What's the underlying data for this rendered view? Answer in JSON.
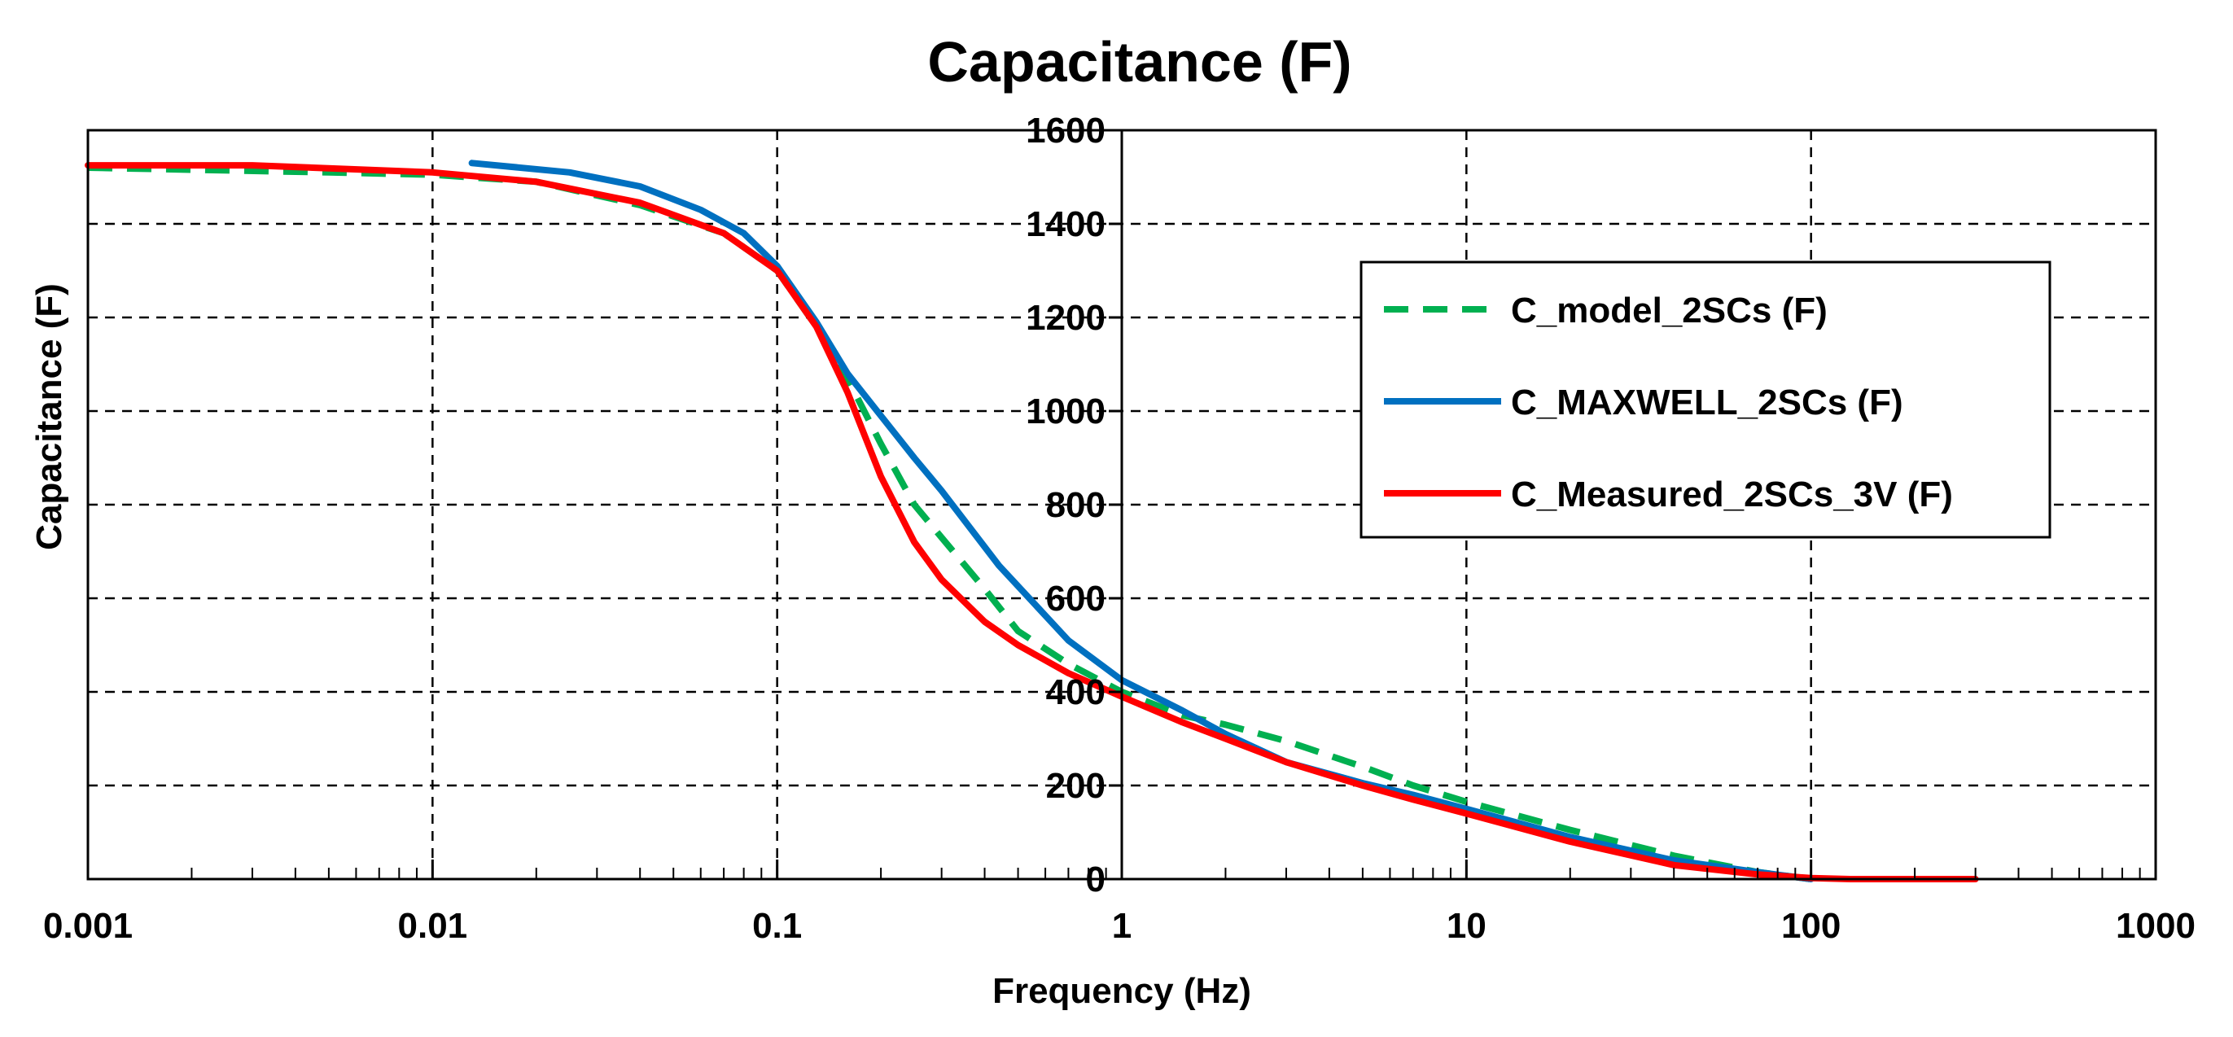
{
  "chart_data": {
    "type": "line",
    "title": "Capacitance (F)",
    "xlabel": "Frequency (Hz)",
    "ylabel": "Capacitance (F)",
    "xscale": "log",
    "xlim": [
      0.001,
      1000
    ],
    "ylim": [
      0,
      1600
    ],
    "x_ticks": [
      0.001,
      0.01,
      0.1,
      1,
      10,
      100,
      1000
    ],
    "x_tick_labels": [
      "0.001",
      "0.01",
      "0.1",
      "1",
      "10",
      "100",
      "1000"
    ],
    "y_ticks": [
      0,
      200,
      400,
      600,
      800,
      1000,
      1200,
      1400,
      1600
    ],
    "y_tick_labels": [
      "0",
      "200",
      "400",
      "600",
      "800",
      "1000",
      "1200",
      "1400",
      "1600"
    ],
    "grid": true,
    "legend_position": "right",
    "series": [
      {
        "name": "C_model_2SCs (F)",
        "color": "#00b050",
        "style": "dashed",
        "x": [
          0.001,
          0.005,
          0.01,
          0.02,
          0.04,
          0.07,
          0.1,
          0.13,
          0.16,
          0.2,
          0.25,
          0.3,
          0.4,
          0.5,
          0.7,
          1,
          1.5,
          2,
          3,
          5,
          7,
          10,
          20,
          40,
          70,
          100
        ],
        "y": [
          1520,
          1510,
          1505,
          1490,
          1440,
          1380,
          1300,
          1180,
          1070,
          930,
          800,
          730,
          620,
          530,
          460,
          400,
          350,
          330,
          295,
          240,
          200,
          165,
          105,
          50,
          15,
          0
        ]
      },
      {
        "name": "C_MAXWELL_2SCs (F)",
        "color": "#0070c0",
        "style": "solid",
        "x": [
          0.013,
          0.025,
          0.04,
          0.06,
          0.08,
          0.1,
          0.13,
          0.16,
          0.2,
          0.25,
          0.3,
          0.44,
          0.7,
          1,
          1.5,
          2,
          3,
          5,
          7,
          10,
          20,
          40,
          70,
          100
        ],
        "y": [
          1530,
          1510,
          1480,
          1430,
          1380,
          1310,
          1190,
          1080,
          990,
          900,
          830,
          670,
          510,
          425,
          360,
          310,
          250,
          205,
          180,
          150,
          90,
          40,
          15,
          0
        ]
      },
      {
        "name": "C_Measured_2SCs_3V (F)",
        "color": "#ff0000",
        "style": "solid",
        "x": [
          0.001,
          0.003,
          0.01,
          0.02,
          0.04,
          0.07,
          0.1,
          0.13,
          0.16,
          0.2,
          0.25,
          0.3,
          0.4,
          0.5,
          0.7,
          1,
          1.5,
          2,
          3,
          5,
          7,
          10,
          20,
          40,
          70,
          100,
          130,
          200,
          300
        ],
        "y": [
          1525,
          1525,
          1510,
          1490,
          1445,
          1380,
          1300,
          1180,
          1040,
          860,
          720,
          640,
          550,
          500,
          440,
          390,
          335,
          300,
          250,
          200,
          170,
          140,
          80,
          30,
          10,
          2,
          0,
          0,
          0
        ]
      }
    ]
  }
}
